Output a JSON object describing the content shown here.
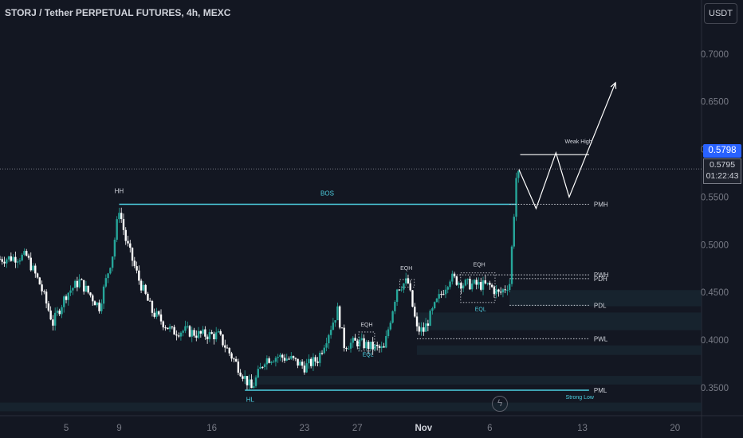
{
  "header": {
    "title": "STORJ / Tether PERPETUAL FUTURES, 4h, MEXC",
    "currency_button": "USDT"
  },
  "price_badge": {
    "value": "0.5798"
  },
  "cursor_badge": {
    "price": "0.5795",
    "countdown": "01:22:43"
  },
  "icons": {
    "flash": "flash-icon"
  },
  "colors": {
    "background": "#131722",
    "up": "#26a69a",
    "down": "#ffffff",
    "cyan": "#4dd0e1",
    "text": "#d1d4dc",
    "grid": "#2a2e39",
    "badge": "#2962ff"
  },
  "chart_data": {
    "type": "candlestick",
    "title": "STORJ / Tether PERPETUAL FUTURES, 4h, MEXC",
    "ylim": [
      0.3208,
      0.7566
    ],
    "y_ticks": [
      "0.7000",
      "0.6500",
      "0.6000",
      "0.5500",
      "0.5000",
      "0.4500",
      "0.4000",
      "0.3500"
    ],
    "x_ticks": [
      "5",
      "9",
      "16",
      "23",
      "27",
      "Nov",
      "6",
      "13",
      "20"
    ],
    "x_tick_days": [
      5,
      9,
      16,
      23,
      27,
      32,
      37,
      44,
      51
    ],
    "x_range_days": [
      0,
      53
    ],
    "anchors": [
      [
        0,
        0.485
      ],
      [
        2,
        0.488
      ],
      [
        3,
        0.459
      ],
      [
        4,
        0.418
      ],
      [
        5,
        0.448
      ],
      [
        6,
        0.462
      ],
      [
        7.5,
        0.435
      ],
      [
        8.5,
        0.49
      ],
      [
        9,
        0.538
      ],
      [
        9.5,
        0.505
      ],
      [
        10.5,
        0.463
      ],
      [
        11.5,
        0.43
      ],
      [
        13,
        0.409
      ],
      [
        14,
        0.41
      ],
      [
        15,
        0.406
      ],
      [
        16.5,
        0.405
      ],
      [
        18,
        0.372
      ],
      [
        19,
        0.349
      ],
      [
        20,
        0.38
      ],
      [
        21,
        0.383
      ],
      [
        22,
        0.38
      ],
      [
        23,
        0.372
      ],
      [
        24,
        0.38
      ],
      [
        25.5,
        0.431
      ],
      [
        26,
        0.395
      ],
      [
        27,
        0.398
      ],
      [
        28,
        0.393
      ],
      [
        29,
        0.39
      ],
      [
        30,
        0.455
      ],
      [
        30.8,
        0.462
      ],
      [
        31.5,
        0.411
      ],
      [
        32,
        0.41
      ],
      [
        33,
        0.44
      ],
      [
        34,
        0.466
      ],
      [
        35,
        0.459
      ],
      [
        36,
        0.458
      ],
      [
        37,
        0.457
      ],
      [
        37.7,
        0.448
      ],
      [
        38.5,
        0.46
      ],
      [
        39,
        0.57
      ],
      [
        39.2,
        0.579
      ]
    ],
    "projection_path": [
      [
        39.2,
        0.579
      ],
      [
        40.5,
        0.538
      ],
      [
        42,
        0.5965
      ],
      [
        43,
        0.55
      ],
      [
        46.5,
        0.67
      ]
    ],
    "levels": [
      {
        "label": "PMH",
        "price": 0.5425,
        "style": "dotted",
        "x_start": 38.5,
        "x_end": 44.5
      },
      {
        "label": "PWH",
        "price": 0.4685,
        "style": "dotted",
        "x_start": 34.5,
        "x_end": 44.5
      },
      {
        "label": "PDH",
        "price": 0.4645,
        "style": "dotted",
        "x_start": 38.5,
        "x_end": 44.5
      },
      {
        "label": "PDL",
        "price": 0.4365,
        "style": "dotted",
        "x_start": 38.5,
        "x_end": 44.5
      },
      {
        "label": "PWL",
        "price": 0.4015,
        "style": "dotted",
        "x_start": 31.5,
        "x_end": 44.5
      },
      {
        "label": "PML",
        "price": 0.3475,
        "style": "solid",
        "x_start": 18.5,
        "x_end": 44.5
      }
    ],
    "bos": {
      "label": "BOS",
      "price": 0.5425,
      "x_start": 9.0,
      "x_end": 39.0
    },
    "weak_high": {
      "label": "Weak High",
      "price": 0.5945,
      "x_start": 39.3,
      "x_end": 44.5
    },
    "annotations": [
      {
        "text": "HH",
        "x": 9.0,
        "y": 0.554
      },
      {
        "text": "HL",
        "x": 18.9,
        "y": 0.3355
      },
      {
        "text": "EQH",
        "x": 27.7,
        "y": 0.4145
      },
      {
        "text": "EQL",
        "x": 27.8,
        "y": 0.383
      },
      {
        "text": "EQH",
        "x": 30.7,
        "y": 0.4735
      },
      {
        "text": "EQH",
        "x": 36.2,
        "y": 0.4775
      },
      {
        "text": "EQL",
        "x": 36.3,
        "y": 0.4305
      },
      {
        "text": "Weak High",
        "x": 43.7,
        "y": 0.6065
      },
      {
        "text": "Strong Low",
        "x": 43.8,
        "y": 0.3385
      }
    ],
    "zones": [
      {
        "y_top": 0.3625,
        "y_bottom": 0.3535,
        "x_start": 18.5
      },
      {
        "y_top": 0.3345,
        "y_bottom": 0.3255,
        "x_start": 0
      },
      {
        "y_top": 0.4525,
        "y_bottom": 0.4355,
        "x_start": 38.5
      },
      {
        "y_top": 0.429,
        "y_bottom": 0.4105,
        "x_start": 31.5
      },
      {
        "y_top": 0.3945,
        "y_bottom": 0.3845,
        "x_start": 31.5
      }
    ],
    "eq_boxes": [
      {
        "x_start": 27.1,
        "x_end": 28.3,
        "y_top": 0.4085,
        "y_bottom": 0.3885
      },
      {
        "x_start": 30.2,
        "x_end": 31.3,
        "y_top": 0.4635,
        "y_bottom": 0.4555
      },
      {
        "x_start": 34.8,
        "x_end": 37.4,
        "y_top": 0.4705,
        "y_bottom": 0.4395
      }
    ]
  }
}
